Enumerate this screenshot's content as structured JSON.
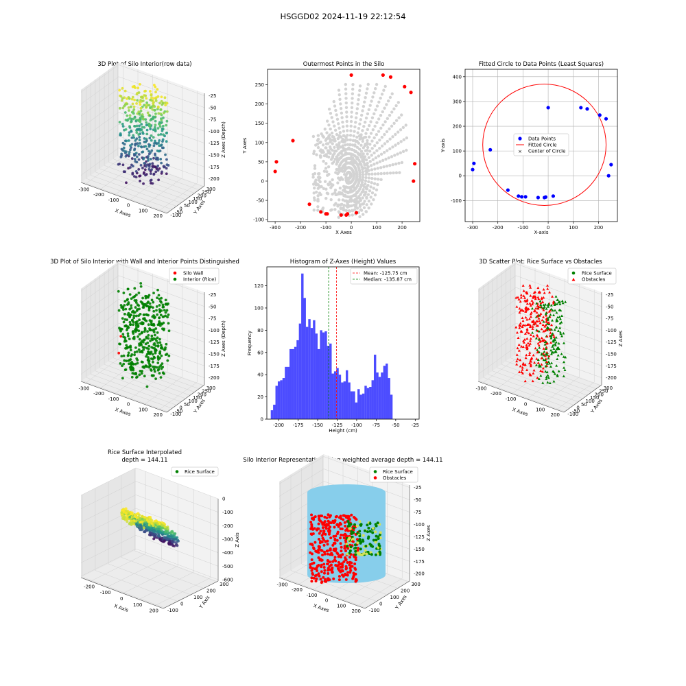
{
  "suptitle": "HSGGD02 2024-11-19 22:12:54",
  "chart_data": [
    {
      "id": "p1",
      "type": "scatter3d",
      "title": "3D Plot of Silo Interior(row data)",
      "xlabel": "X Axes",
      "ylabel": "Y Axes",
      "zlabel": "Z Axes (Depth)",
      "xticks": [
        -300,
        -200,
        -100,
        0,
        100,
        200
      ],
      "yticks": [
        -100,
        -50,
        0,
        50,
        100,
        150,
        200,
        250,
        300
      ],
      "zticks": [
        -25,
        -50,
        -75,
        -100,
        -125,
        -150,
        -175,
        -200
      ],
      "xlim": [
        -330,
        250
      ],
      "ylim": [
        -110,
        310
      ],
      "zlim": [
        -215,
        -20
      ],
      "colormap": "viridis"
    },
    {
      "id": "p2",
      "type": "scatter",
      "title": "Outermost Points in the Silo",
      "xlabel": "X Axes",
      "ylabel": "Y Axes",
      "xticks": [
        -300,
        -200,
        -100,
        0,
        100,
        200
      ],
      "yticks": [
        -100,
        -50,
        0,
        50,
        100,
        150,
        200,
        250
      ],
      "xlim": [
        -330,
        270
      ],
      "ylim": [
        -105,
        290
      ],
      "background_color": "#d3d3d3",
      "highlight_color": "#ff0000",
      "outer_points": [
        [
          -300,
          25
        ],
        [
          -295,
          50
        ],
        [
          -230,
          105
        ],
        [
          -165,
          -60
        ],
        [
          -120,
          -80
        ],
        [
          -100,
          -85
        ],
        [
          -95,
          -85
        ],
        [
          -40,
          -88
        ],
        [
          -20,
          -88
        ],
        [
          -15,
          -85
        ],
        [
          0,
          275
        ],
        [
          20,
          -82
        ],
        [
          125,
          275
        ],
        [
          155,
          270
        ],
        [
          210,
          245
        ],
        [
          235,
          230
        ],
        [
          250,
          45
        ],
        [
          245,
          0
        ]
      ]
    },
    {
      "id": "p3",
      "type": "scatter",
      "title": "Fitted Circle to Data Points (Least Squares)",
      "xlabel": "X-axis",
      "ylabel": "Y-axis",
      "xticks": [
        -300,
        -200,
        -100,
        0,
        100,
        200
      ],
      "yticks": [
        -100,
        0,
        100,
        200,
        300,
        400
      ],
      "xlim": [
        -330,
        275
      ],
      "ylim": [
        -185,
        430
      ],
      "grid": true,
      "legend": [
        "Data Points",
        "Fitted Circle",
        "Center of Circle"
      ],
      "legend_position": "center",
      "data_points": [
        [
          -300,
          25
        ],
        [
          -295,
          50
        ],
        [
          -230,
          105
        ],
        [
          -160,
          -58
        ],
        [
          -118,
          -82
        ],
        [
          -105,
          -85
        ],
        [
          -90,
          -85
        ],
        [
          -40,
          -88
        ],
        [
          -15,
          -88
        ],
        [
          -10,
          -86
        ],
        [
          0,
          275
        ],
        [
          20,
          -82
        ],
        [
          130,
          275
        ],
        [
          155,
          270
        ],
        [
          205,
          245
        ],
        [
          230,
          230
        ],
        [
          250,
          45
        ],
        [
          240,
          0
        ]
      ],
      "circle": {
        "center": [
          -15,
          125
        ],
        "radius": 245
      }
    },
    {
      "id": "p4",
      "type": "scatter3d",
      "title": "3D Plot of Silo Interior with Wall and Interior Points Distinguished",
      "xlabel": "X Axes",
      "ylabel": "Y Axes",
      "zlabel": "Z Axes (Depth)",
      "xticks": [
        -300,
        -200,
        -100,
        0,
        100,
        200
      ],
      "yticks": [
        -100,
        -50,
        0,
        50,
        100,
        150,
        200,
        250,
        300
      ],
      "zticks": [
        -25,
        -50,
        -75,
        -100,
        -125,
        -150,
        -175,
        -200
      ],
      "xlim": [
        -330,
        250
      ],
      "ylim": [
        -110,
        310
      ],
      "zlim": [
        -215,
        -20
      ],
      "legend": [
        "Silo Wall",
        "Interior (Rice)"
      ],
      "colors": [
        "#ff0000",
        "#008000"
      ]
    },
    {
      "id": "p5",
      "type": "bar",
      "title": "Histogram of Z-Axes (Height) Values",
      "xlabel": "Height (cm)",
      "ylabel": "Frequency",
      "xticks": [
        -200,
        -175,
        -150,
        -125,
        -100,
        -75,
        -50,
        -25
      ],
      "yticks": [
        0,
        20,
        40,
        60,
        80,
        100,
        120
      ],
      "xlim": [
        -215,
        -20
      ],
      "ylim": [
        0,
        137
      ],
      "bin_start": -210,
      "bin_width": 3,
      "values": [
        8,
        13,
        30,
        34,
        35,
        37,
        47,
        47,
        63,
        63,
        65,
        71,
        86,
        131,
        109,
        83,
        90,
        82,
        89,
        77,
        63,
        80,
        78,
        79,
        66,
        68,
        41,
        43,
        46,
        40,
        33,
        34,
        44,
        33,
        25,
        25,
        15,
        27,
        22,
        23,
        30,
        28,
        29,
        35,
        58,
        42,
        38,
        42,
        48,
        50,
        37,
        22
      ],
      "bar_color": "#0000ff",
      "mean": -125.75,
      "median": -135.87,
      "legend": [
        "Mean: -125.75 cm",
        "Median: -135.87 cm"
      ]
    },
    {
      "id": "p6",
      "type": "scatter3d",
      "title": "3D Scatter Plot: Rice Surface vs Obstacles",
      "xlabel": "X Axes",
      "ylabel": "Y Axes",
      "zlabel": "Z Axes",
      "xticks": [
        -300,
        -200,
        -100,
        0,
        100,
        200
      ],
      "yticks": [
        -100,
        -50,
        0,
        50,
        100,
        150,
        200,
        250,
        300
      ],
      "zticks": [
        -25,
        -50,
        -75,
        -100,
        -125,
        -150,
        -175,
        -200
      ],
      "xlim": [
        -330,
        250
      ],
      "ylim": [
        -110,
        310
      ],
      "zlim": [
        -215,
        -20
      ],
      "legend": [
        "Rice Surface",
        "Obstacles"
      ],
      "colors": [
        "#008000",
        "#ff0000"
      ]
    },
    {
      "id": "p7",
      "type": "surface3d",
      "title": "Rice Surface Interpolated\ndepth = 144.11",
      "xlabel": "X Axis",
      "ylabel": "Y Axis",
      "zlabel": "Z Axis",
      "xticks": [
        -200,
        -100,
        0,
        100,
        200
      ],
      "yticks": [
        -100,
        0,
        100,
        200,
        300
      ],
      "zticks": [
        0,
        -100,
        -200,
        -300,
        -400,
        -500,
        -600
      ],
      "xlim": [
        -260,
        250
      ],
      "ylim": [
        -110,
        310
      ],
      "zlim": [
        -610,
        0
      ],
      "legend": [
        "Rice Surface"
      ]
    },
    {
      "id": "p8",
      "type": "scatter3d",
      "title": "Silo Interior Representation using weighted average depth = 144.11",
      "xlabel": "X Axes",
      "ylabel": "Y Axes",
      "zlabel": "Z Axes",
      "xticks": [
        -300,
        -200,
        -100,
        0,
        100,
        200
      ],
      "yticks": [
        -100,
        0,
        100,
        200,
        300
      ],
      "zticks": [
        -25,
        -50,
        -75,
        -100,
        -125,
        -150,
        -175,
        -200
      ],
      "xlim": [
        -330,
        250
      ],
      "ylim": [
        -110,
        310
      ],
      "zlim": [
        -215,
        -20
      ],
      "legend": [
        "Rice Surface",
        "Obstacles"
      ],
      "colors": [
        "#008000",
        "#ff0000"
      ],
      "cylinder_color": "#87ceeb"
    }
  ]
}
